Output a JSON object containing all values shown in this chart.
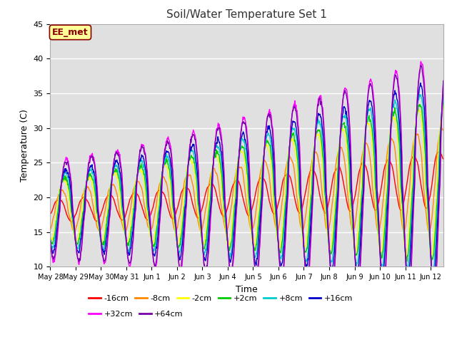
{
  "title": "Soil/Water Temperature Set 1",
  "xlabel": "Time",
  "ylabel": "Temperature (C)",
  "ylim": [
    10,
    45
  ],
  "xlim_days": 15.5,
  "annotation": "EE_met",
  "annotation_color": "#8B0000",
  "annotation_bg": "#FFFF99",
  "plot_bg": "#E0E0E0",
  "series": [
    {
      "label": "-16cm",
      "color": "#FF0000"
    },
    {
      "label": "-8cm",
      "color": "#FF8800"
    },
    {
      "label": "-2cm",
      "color": "#FFFF00"
    },
    {
      "label": "+2cm",
      "color": "#00CC00"
    },
    {
      "label": "+8cm",
      "color": "#00CCCC"
    },
    {
      "label": "+16cm",
      "color": "#0000CC"
    },
    {
      "label": "+32cm",
      "color": "#FF00FF"
    },
    {
      "label": "+64cm",
      "color": "#7700AA"
    }
  ],
  "xtick_labels": [
    "May 28",
    "May 29",
    "May 30",
    "May 31",
    "Jun 1",
    "Jun 2",
    "Jun 3",
    "Jun 4",
    "Jun 5",
    "Jun 6",
    "Jun 7",
    "Jun 8",
    "Jun 9",
    "Jun 10",
    "Jun 11",
    "Jun 12"
  ],
  "ytick_labels": [
    10,
    15,
    20,
    25,
    30,
    35,
    40,
    45
  ],
  "legend_row1": [
    "-16cm",
    "-8cm",
    "-2cm",
    "+2cm",
    "+8cm",
    "+16cm"
  ],
  "legend_row2": [
    "+32cm",
    "+64cm"
  ]
}
